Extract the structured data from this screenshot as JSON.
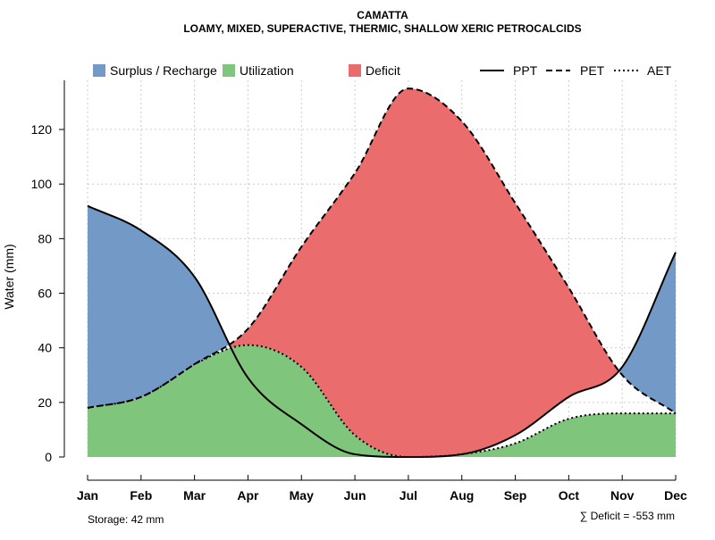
{
  "chart_data": {
    "type": "area",
    "title": "CAMATTA",
    "subtitle": "LOAMY, MIXED, SUPERACTIVE, THERMIC, SHALLOW XERIC PETROCALCIDS",
    "xlabel": "",
    "ylabel": "Water (mm)",
    "ylim": [
      0,
      138
    ],
    "yticks": [
      0,
      20,
      40,
      60,
      80,
      100,
      120
    ],
    "grid": true,
    "categories": [
      "Jan",
      "Feb",
      "Mar",
      "Apr",
      "May",
      "Jun",
      "Jul",
      "Aug",
      "Sep",
      "Oct",
      "Nov",
      "Dec"
    ],
    "series": [
      {
        "name": "PPT",
        "style": "solid",
        "values": [
          92,
          83,
          66,
          29,
          12,
          1,
          0,
          1,
          8,
          22,
          33,
          75
        ]
      },
      {
        "name": "PET",
        "style": "dashed",
        "values": [
          18,
          22,
          34,
          47,
          77,
          104,
          135,
          123,
          93,
          62,
          30,
          16
        ]
      },
      {
        "name": "AET",
        "style": "dotted",
        "values": [
          18,
          22,
          34,
          41,
          33,
          8,
          0,
          1,
          5,
          14,
          16,
          16
        ]
      }
    ],
    "areas": [
      {
        "name": "Surplus / Recharge",
        "color": "#7399C6"
      },
      {
        "name": "Utilization",
        "color": "#7FC57B"
      },
      {
        "name": "Deficit",
        "color": "#EB6C6C"
      }
    ],
    "legend_position": "top",
    "annotations": {
      "storage": "Storage: 42 mm",
      "deficit": "∑ Deficit = -553 mm"
    }
  }
}
